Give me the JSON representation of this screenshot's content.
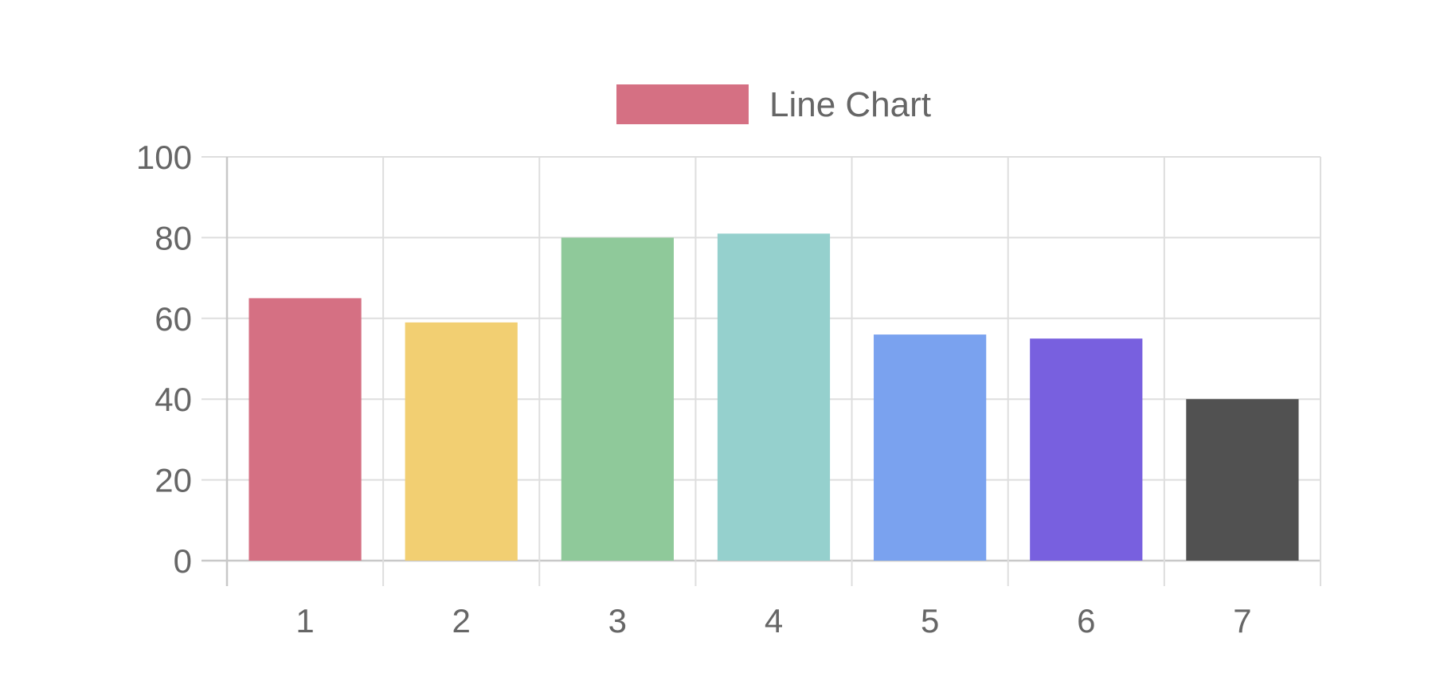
{
  "chart_data": {
    "type": "bar",
    "categories": [
      "1",
      "2",
      "3",
      "4",
      "5",
      "6",
      "7"
    ],
    "series": [
      {
        "name": "Line Chart",
        "values": [
          65,
          59,
          80,
          81,
          56,
          55,
          40
        ],
        "colors": [
          "#d57083",
          "#f2cf72",
          "#8fc99a",
          "#95d0cd",
          "#7aa2ef",
          "#7860df",
          "#515151"
        ]
      }
    ],
    "y_ticks": [
      "0",
      "20",
      "40",
      "60",
      "80",
      "100"
    ],
    "ylim": [
      0,
      100
    ],
    "grid": true,
    "legend": {
      "position": "top-center",
      "label": "Line Chart",
      "swatch_color": "#d57083"
    },
    "title": "",
    "xlabel": "",
    "ylabel": ""
  }
}
